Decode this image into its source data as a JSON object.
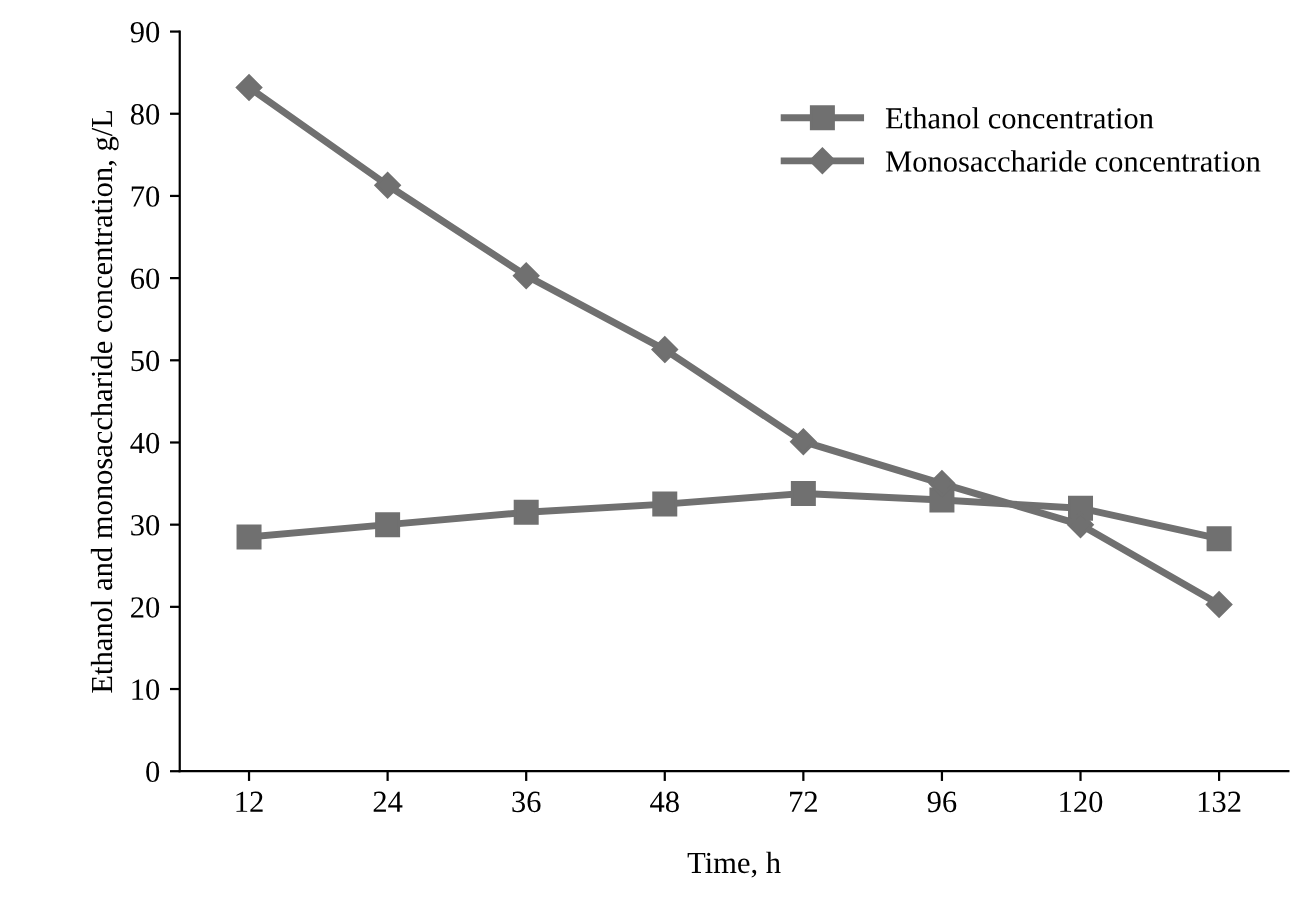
{
  "chart_data": {
    "type": "line",
    "xlabel": "Time, h",
    "ylabel": "Ethanol and monosaccharide concentration, g/L",
    "categories": [
      "12",
      "24",
      "36",
      "48",
      "72",
      "96",
      "120",
      "132"
    ],
    "series": [
      {
        "name": "Ethanol concentration",
        "color": "#707070",
        "marker": "square",
        "values": [
          28.5,
          30,
          31.5,
          32.5,
          33.8,
          33,
          32,
          28.3
        ]
      },
      {
        "name": "Monosaccharide concentration",
        "color": "#707070",
        "marker": "diamond",
        "values": [
          83.2,
          71.3,
          60.3,
          51.3,
          40.1,
          35,
          30,
          20.3
        ]
      }
    ],
    "ylim": [
      0,
      90
    ],
    "yticks": [
      0,
      10,
      20,
      30,
      40,
      50,
      60,
      70,
      80,
      90
    ],
    "grid": false,
    "legend": "right",
    "line_style": "solid"
  }
}
